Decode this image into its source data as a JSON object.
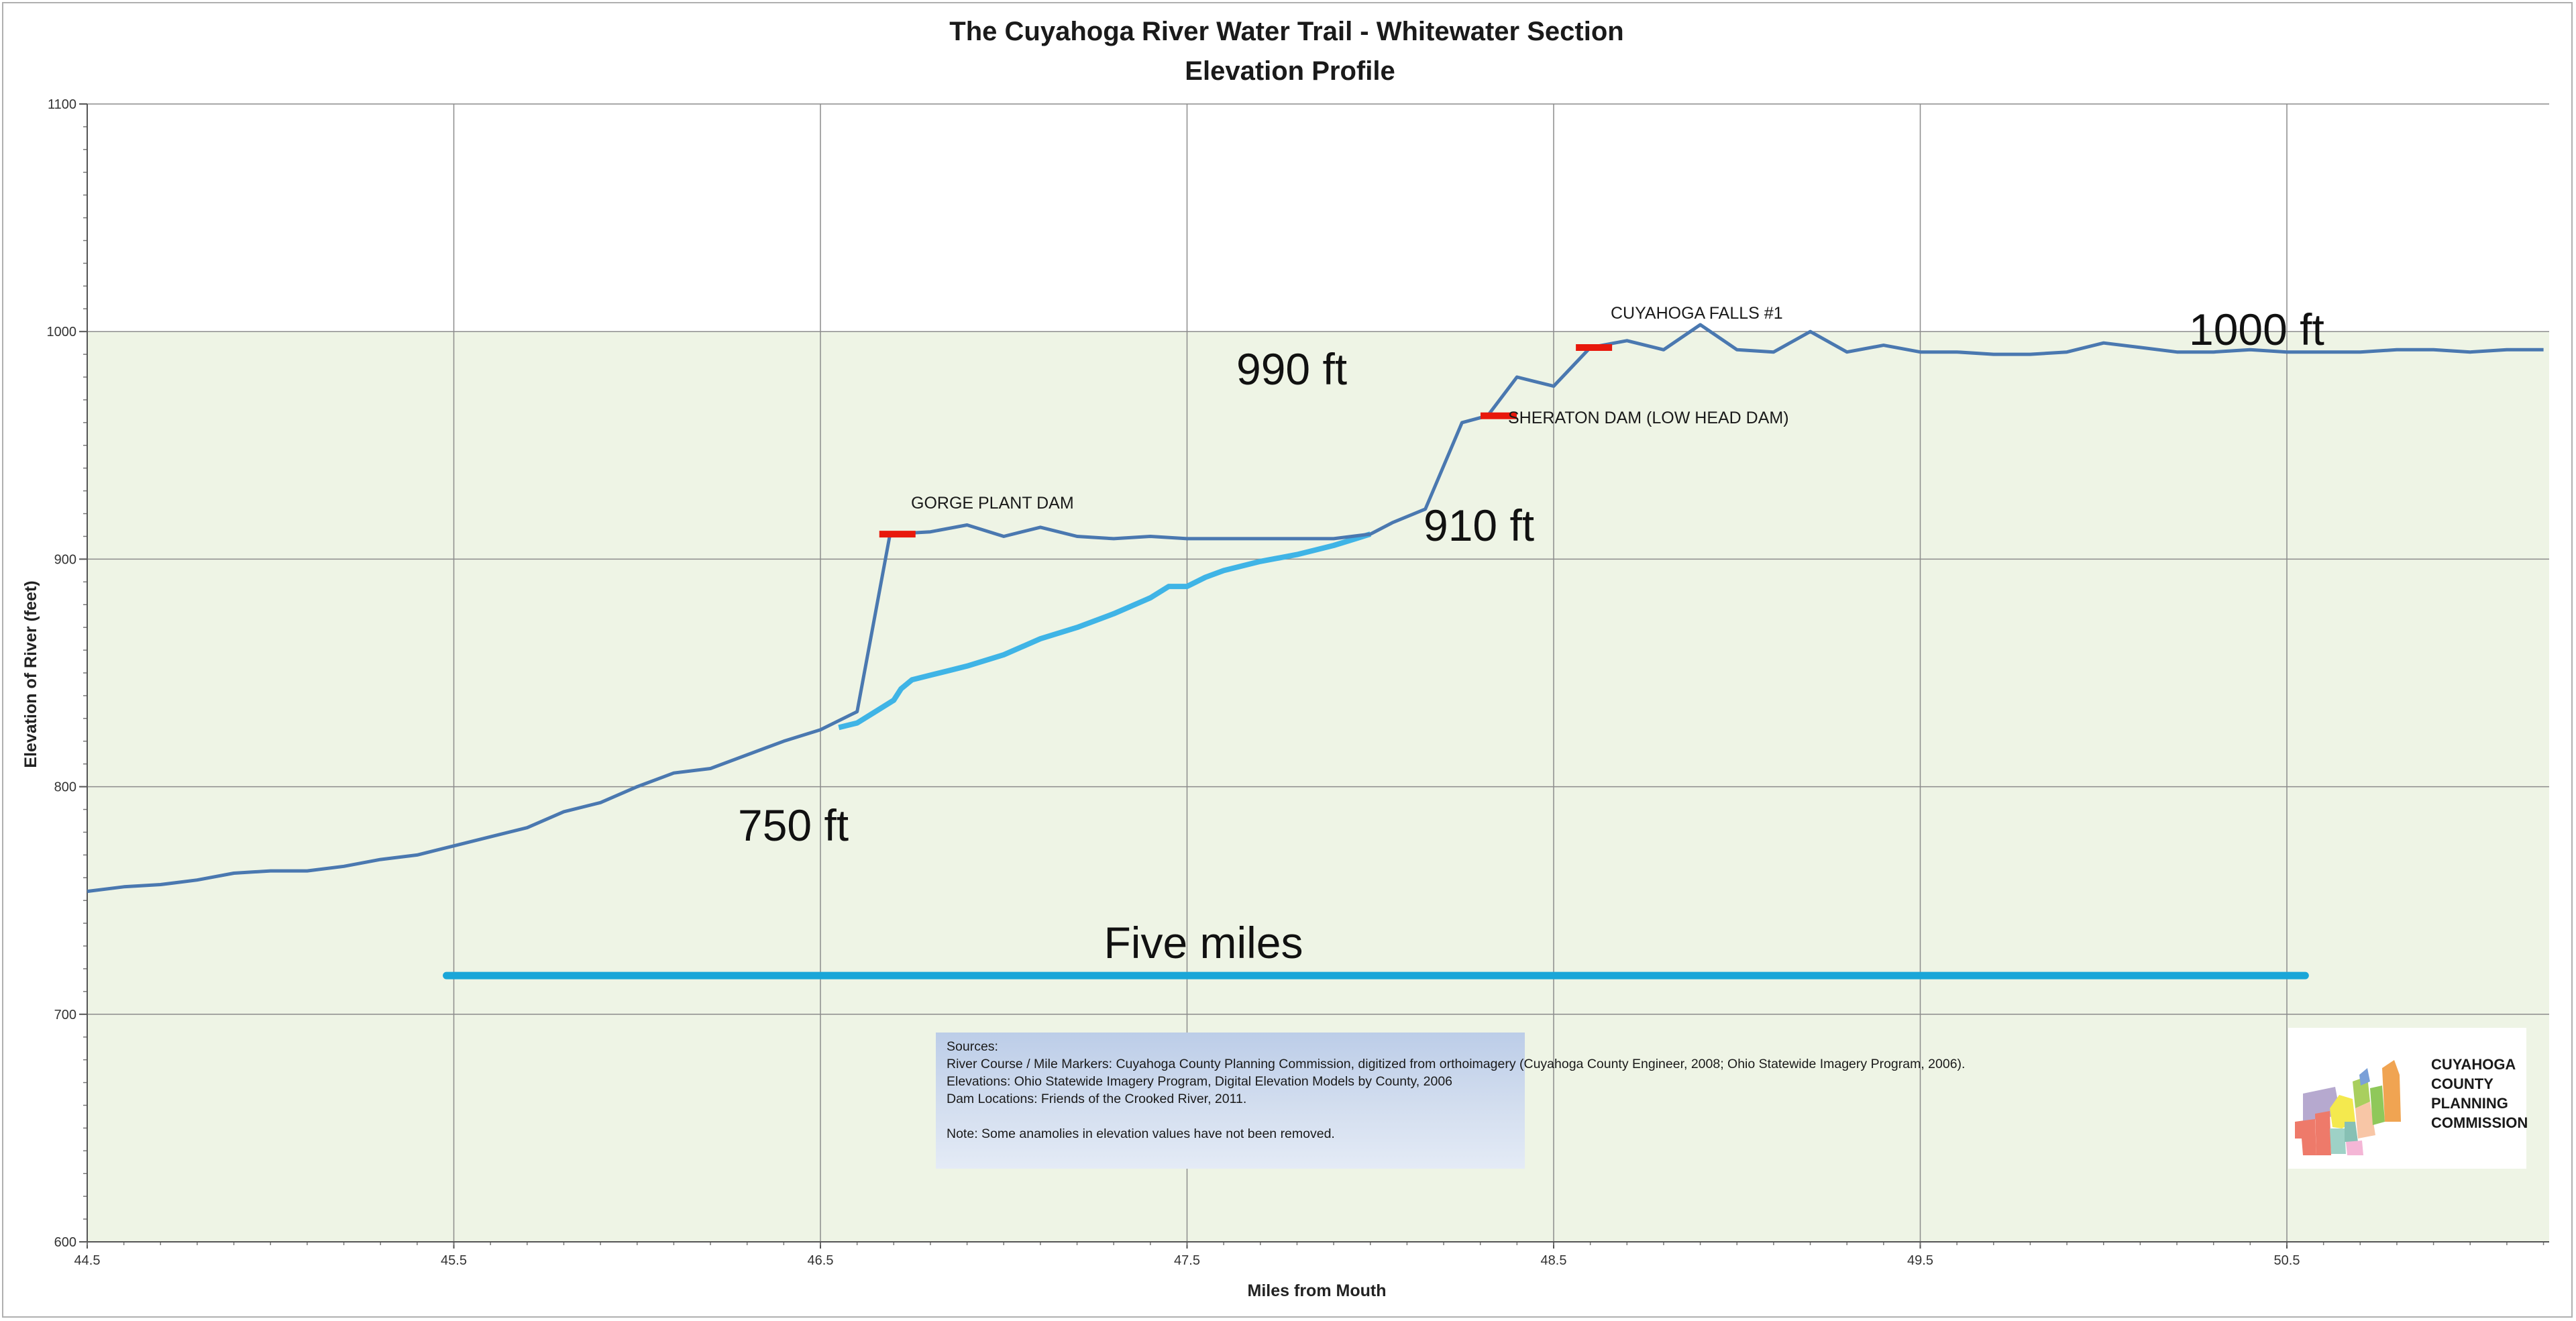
{
  "chart_data": {
    "type": "line",
    "title": "The Cuyahoga River Water Trail - Whitewater Section",
    "subtitle": "Elevation Profile",
    "xlabel": "Miles from Mouth",
    "ylabel": "Elevation of River (feet)",
    "xlim": [
      44.5,
      51.2
    ],
    "ylim": [
      600,
      1100
    ],
    "x_ticks": [
      44.5,
      45.5,
      46.5,
      47.5,
      48.5,
      49.5,
      50.5
    ],
    "x_tick_labels": [
      "44.5",
      "45.5",
      "46.5",
      "47.5",
      "48.5",
      "49.5",
      "50.5"
    ],
    "y_ticks": [
      600,
      700,
      800,
      900,
      1000,
      1100
    ],
    "y_tick_labels": [
      "600",
      "700",
      "800",
      "900",
      "1000",
      "1100"
    ],
    "grid": true,
    "shaded_below": 1000,
    "series": [
      {
        "color": "#4a78b0",
        "points": [
          [
            44.5,
            754
          ],
          [
            44.6,
            756
          ],
          [
            44.7,
            757
          ],
          [
            44.8,
            759
          ],
          [
            44.9,
            762
          ],
          [
            45.0,
            763
          ],
          [
            45.1,
            763
          ],
          [
            45.2,
            765
          ],
          [
            45.3,
            768
          ],
          [
            45.4,
            770
          ],
          [
            45.5,
            774
          ],
          [
            45.6,
            778
          ],
          [
            45.7,
            782
          ],
          [
            45.8,
            789
          ],
          [
            45.9,
            793
          ],
          [
            46.0,
            800
          ],
          [
            46.1,
            806
          ],
          [
            46.2,
            808
          ],
          [
            46.3,
            814
          ],
          [
            46.4,
            820
          ],
          [
            46.5,
            825
          ],
          [
            46.6,
            833
          ],
          [
            46.69,
            911
          ],
          [
            46.8,
            912
          ],
          [
            46.9,
            915
          ],
          [
            47.0,
            910
          ],
          [
            47.1,
            914
          ],
          [
            47.2,
            910
          ],
          [
            47.3,
            909
          ],
          [
            47.4,
            910
          ],
          [
            47.5,
            909
          ],
          [
            47.6,
            909
          ],
          [
            47.7,
            909
          ],
          [
            47.8,
            909
          ],
          [
            47.9,
            909
          ],
          [
            48.0,
            911
          ],
          [
            48.06,
            916
          ],
          [
            48.15,
            922
          ],
          [
            48.25,
            960
          ],
          [
            48.32,
            963
          ],
          [
            48.4,
            980
          ],
          [
            48.5,
            976
          ],
          [
            48.6,
            993
          ],
          [
            48.7,
            996
          ],
          [
            48.8,
            992
          ],
          [
            48.9,
            1003
          ],
          [
            49.0,
            992
          ],
          [
            49.1,
            991
          ],
          [
            49.2,
            1000
          ],
          [
            49.3,
            991
          ],
          [
            49.4,
            994
          ],
          [
            49.5,
            991
          ],
          [
            49.6,
            991
          ],
          [
            49.7,
            990
          ],
          [
            49.8,
            990
          ],
          [
            49.9,
            991
          ],
          [
            50.0,
            995
          ],
          [
            50.1,
            993
          ],
          [
            50.2,
            991
          ],
          [
            50.3,
            991
          ],
          [
            50.4,
            992
          ],
          [
            50.5,
            991
          ],
          [
            50.6,
            991
          ],
          [
            50.7,
            991
          ],
          [
            50.8,
            992
          ],
          [
            50.9,
            992
          ],
          [
            51.0,
            991
          ],
          [
            51.1,
            992
          ],
          [
            51.2,
            992
          ]
        ]
      },
      {
        "color": "#3fb4e6",
        "points": [
          [
            46.55,
            826
          ],
          [
            46.6,
            828
          ],
          [
            46.65,
            833
          ],
          [
            46.7,
            838
          ],
          [
            46.72,
            843
          ],
          [
            46.75,
            847
          ],
          [
            46.8,
            849
          ],
          [
            46.85,
            851
          ],
          [
            46.9,
            853
          ],
          [
            47.0,
            858
          ],
          [
            47.1,
            865
          ],
          [
            47.2,
            870
          ],
          [
            47.3,
            876
          ],
          [
            47.4,
            883
          ],
          [
            47.45,
            888
          ],
          [
            47.5,
            888
          ],
          [
            47.55,
            892
          ],
          [
            47.6,
            895
          ],
          [
            47.7,
            899
          ],
          [
            47.8,
            902
          ],
          [
            47.9,
            906
          ],
          [
            48.0,
            911
          ]
        ]
      }
    ],
    "scale_bar": {
      "x_start": 45.48,
      "x_end": 50.55,
      "y": 717,
      "color": "#1aa6d8",
      "label": "Five miles"
    },
    "dams": [
      {
        "x": 46.71,
        "y": 911,
        "label": "GORGE PLANT DAM"
      },
      {
        "x": 48.35,
        "y": 963,
        "label": "SHERATON DAM (LOW HEAD DAM)"
      },
      {
        "x": 48.61,
        "y": 993,
        "label": "CUYAHOGA FALLS #1"
      }
    ],
    "dam_color": "#e8180c",
    "annotations": [
      "750 ft",
      "910 ft",
      "990 ft",
      "1000 ft"
    ],
    "colors": {
      "plot_fill": "#eef4e5",
      "grid": "#8c8c8c"
    }
  },
  "sources_box": {
    "lines": [
      "Sources:",
      "River Course / Mile Markers: Cuyahoga County Planning Commission, digitized from orthoimagery (Cuyahoga County Engineer, 2008;  Ohio Statewide Imagery Program, 2006).",
      "Elevations: Ohio Statewide Imagery Program, Digital Elevation Models by County, 2006",
      "Dam Locations: Friends of the Crooked River, 2011.",
      "",
      "Note: Some anamolies in elevation values have not been removed."
    ]
  },
  "logo": {
    "lines": [
      "CUYAHOGA",
      "COUNTY",
      "PLANNING",
      "COMMISSION"
    ]
  }
}
